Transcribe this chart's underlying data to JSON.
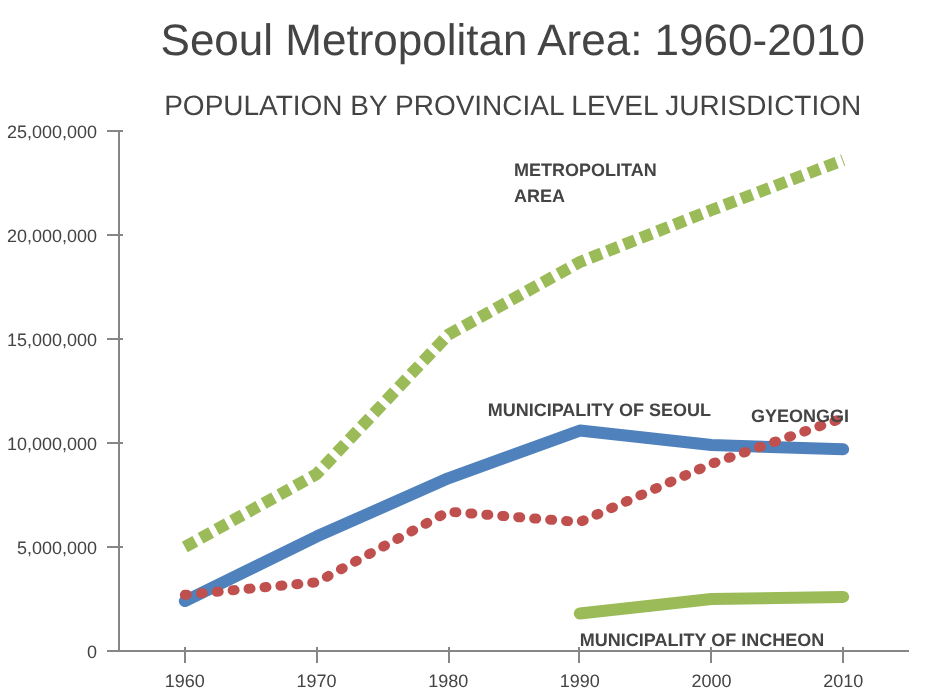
{
  "chart_data": {
    "type": "line",
    "title": "Seoul Metropolitan Area: 1960-2010",
    "subtitle": "POPULATION BY PROVINCIAL LEVEL JURISDICTION",
    "x": [
      1960,
      1970,
      1980,
      1990,
      2000,
      2010
    ],
    "series": [
      {
        "name": "METROPOLITAN AREA",
        "color": "#9bbb59",
        "line_style": "dashed",
        "values": [
          5000000,
          8500000,
          15200000,
          18700000,
          21200000,
          23600000
        ]
      },
      {
        "name": "MUNICIPALITY OF SEOUL",
        "color": "#4f81bd",
        "line_style": "solid",
        "values": [
          2400000,
          5500000,
          8300000,
          10600000,
          9900000,
          9700000
        ]
      },
      {
        "name": "GYEONGGI",
        "color": "#c0504d",
        "line_style": "dotted",
        "values": [
          2700000,
          3300000,
          6700000,
          6200000,
          9000000,
          11200000
        ]
      },
      {
        "name": "MUNICIPALITY OF INCHEON",
        "color": "#9bbb59",
        "line_style": "solid",
        "values": [
          null,
          null,
          null,
          1800000,
          2500000,
          2600000
        ]
      }
    ],
    "xlim": [
      1955,
      2015
    ],
    "xticks": [
      1960,
      1970,
      1980,
      1990,
      2000,
      2010
    ],
    "ylim": [
      0,
      25000000
    ],
    "yticks": [
      {
        "value": 0,
        "label": "0"
      },
      {
        "value": 5000000,
        "label": "5,000,000"
      },
      {
        "value": 10000000,
        "label": "10,000,000"
      },
      {
        "value": 15000000,
        "label": "15,000,000"
      },
      {
        "value": 20000000,
        "label": "20,000,000"
      },
      {
        "value": 25000000,
        "label": "25,000,000"
      }
    ],
    "grid": false,
    "legend": false,
    "marker": "none"
  }
}
